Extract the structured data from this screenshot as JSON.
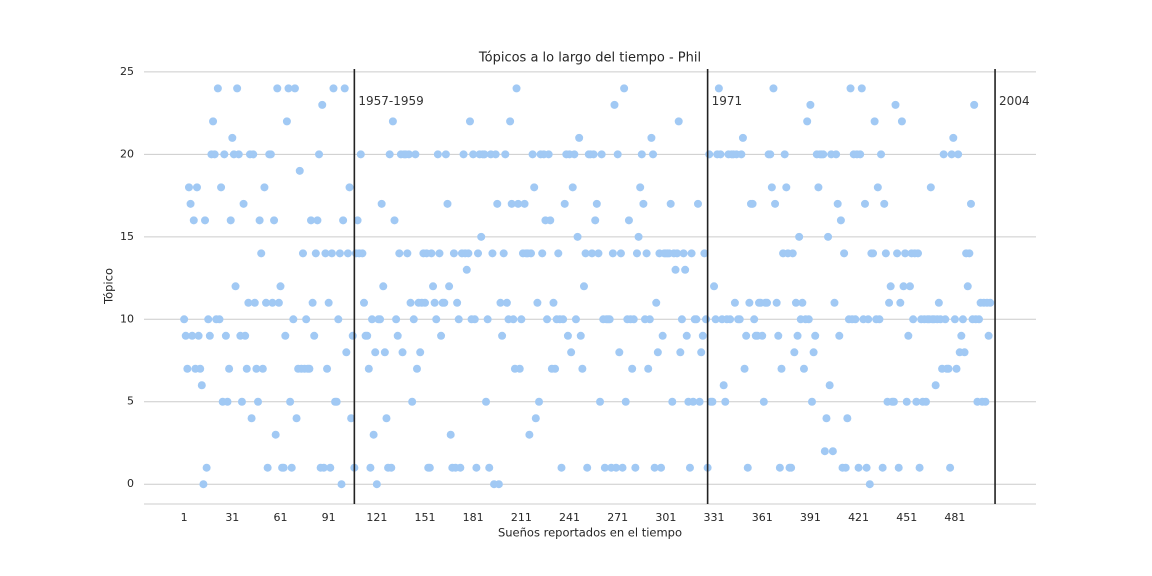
{
  "chart_data": {
    "type": "scatter",
    "title": "Tópicos a lo largo del tiempo - Phil",
    "x_label": "Sueños reportados en el tiempo",
    "y_label": "Tópico",
    "color": "#a1c9f4",
    "grid": true,
    "xlim": [
      -24,
      531.5
    ],
    "ylim": [
      -1.2,
      25.6
    ],
    "xticks": [
      1,
      31,
      61,
      91,
      121,
      151,
      181,
      211,
      241,
      271,
      301,
      331,
      361,
      391,
      421,
      451,
      481
    ],
    "yticks": [
      0,
      5,
      10,
      15,
      20,
      25
    ],
    "vlines": [
      {
        "x": 107,
        "label": "1957-1959"
      },
      {
        "x": 327,
        "label": "1971"
      },
      {
        "x": 506,
        "label": "2004"
      }
    ],
    "x": [
      1,
      2,
      3,
      4,
      5,
      6,
      7,
      8,
      9,
      10,
      11,
      12,
      13,
      14,
      15,
      16,
      17,
      18,
      19,
      20,
      21,
      22,
      23,
      24,
      25,
      26,
      27,
      28,
      29,
      30,
      31,
      32,
      33,
      34,
      35,
      36,
      37,
      38,
      39,
      40,
      41,
      42,
      43,
      44,
      45,
      46,
      47,
      48,
      49,
      50,
      51,
      52,
      53,
      54,
      55,
      56,
      57,
      58,
      59,
      60,
      61,
      62,
      63,
      64,
      65,
      66,
      67,
      68,
      69,
      70,
      71,
      72,
      73,
      74,
      75,
      76,
      77,
      78,
      79,
      80,
      81,
      82,
      83,
      84,
      85,
      86,
      87,
      88,
      89,
      90,
      91,
      92,
      93,
      94,
      95,
      96,
      97,
      98,
      99,
      100,
      101,
      102,
      103,
      104,
      105,
      106,
      107,
      108,
      109,
      110,
      111,
      112,
      113,
      114,
      115,
      116,
      117,
      118,
      119,
      120,
      121,
      122,
      123,
      124,
      125,
      126,
      127,
      128,
      129,
      130,
      131,
      132,
      133,
      134,
      135,
      136,
      137,
      138,
      139,
      140,
      141,
      142,
      143,
      144,
      145,
      146,
      147,
      148,
      149,
      150,
      151,
      152,
      153,
      154,
      155,
      156,
      157,
      158,
      159,
      160,
      161,
      162,
      163,
      164,
      165,
      166,
      167,
      168,
      169,
      170,
      171,
      172,
      173,
      174,
      175,
      176,
      177,
      178,
      179,
      180,
      181,
      182,
      183,
      184,
      185,
      186,
      187,
      188,
      189,
      190,
      191,
      192,
      193,
      194,
      195,
      196,
      197,
      198,
      199,
      200,
      201,
      202,
      203,
      204,
      205,
      206,
      207,
      208,
      209,
      210,
      211,
      212,
      213,
      214,
      215,
      216,
      217,
      218,
      219,
      220,
      221,
      222,
      223,
      224,
      225,
      226,
      227,
      228,
      229,
      230,
      231,
      232,
      233,
      234,
      235,
      236,
      237,
      238,
      239,
      240,
      241,
      242,
      243,
      244,
      245,
      246,
      247,
      248,
      249,
      250,
      251,
      252,
      253,
      254,
      255,
      256,
      257,
      258,
      259,
      260,
      261,
      262,
      263,
      264,
      265,
      266,
      267,
      268,
      269,
      270,
      271,
      272,
      273,
      274,
      275,
      276,
      277,
      278,
      279,
      280,
      281,
      282,
      283,
      284,
      285,
      286,
      287,
      288,
      289,
      290,
      291,
      292,
      293,
      294,
      295,
      296,
      297,
      298,
      299,
      300,
      301,
      302,
      303,
      304,
      305,
      306,
      307,
      308,
      309,
      310,
      311,
      312,
      313,
      314,
      315,
      316,
      317,
      318,
      319,
      320,
      321,
      322,
      323,
      324,
      325,
      326,
      327,
      328,
      329,
      330,
      331,
      332,
      333,
      334,
      335,
      336,
      337,
      338,
      339,
      340,
      341,
      342,
      343,
      344,
      345,
      346,
      347,
      348,
      349,
      350,
      351,
      352,
      353,
      354,
      355,
      356,
      357,
      358,
      359,
      360,
      361,
      362,
      363,
      364,
      365,
      366,
      367,
      368,
      369,
      370,
      371,
      372,
      373,
      374,
      375,
      376,
      377,
      378,
      379,
      380,
      381,
      382,
      383,
      384,
      385,
      386,
      387,
      388,
      389,
      390,
      391,
      392,
      393,
      394,
      395,
      396,
      397,
      398,
      399,
      400,
      401,
      402,
      403,
      404,
      405,
      406,
      407,
      408,
      409,
      410,
      411,
      412,
      413,
      414,
      415,
      416,
      417,
      418,
      419,
      420,
      421,
      422,
      423,
      424,
      425,
      426,
      427,
      428,
      429,
      430,
      431,
      432,
      433,
      434,
      435,
      436,
      437,
      438,
      439,
      440,
      441,
      442,
      443,
      444,
      445,
      446,
      447,
      448,
      449,
      450,
      451,
      452,
      453,
      454,
      455,
      456,
      457,
      458,
      459,
      460,
      461,
      462,
      463,
      464,
      465,
      466,
      467,
      468,
      469,
      470,
      471,
      472,
      473,
      474,
      475,
      476,
      477,
      478,
      479,
      480,
      481,
      482,
      483,
      484,
      485,
      486,
      487,
      488,
      489,
      490,
      491,
      492,
      493,
      494,
      495,
      496,
      497,
      498,
      499,
      500,
      501,
      502,
      503
    ],
    "values": [
      10,
      9,
      7,
      18,
      17,
      9,
      16,
      7,
      18,
      9,
      7,
      6,
      0,
      16,
      1,
      10,
      9,
      20,
      22,
      20,
      10,
      24,
      10,
      18,
      5,
      20,
      9,
      5,
      7,
      16,
      21,
      20,
      12,
      24,
      20,
      9,
      5,
      17,
      9,
      7,
      11,
      20,
      4,
      20,
      11,
      7,
      5,
      16,
      14,
      7,
      18,
      11,
      1,
      20,
      20,
      11,
      16,
      3,
      24,
      11,
      12,
      1,
      1,
      9,
      22,
      24,
      5,
      1,
      10,
      24,
      4,
      7,
      19,
      7,
      14,
      7,
      10,
      7,
      7,
      16,
      11,
      9,
      14,
      16,
      20,
      1,
      23,
      1,
      14,
      7,
      11,
      1,
      14,
      24,
      5,
      5,
      10,
      14,
      0,
      16,
      24,
      8,
      14,
      18,
      4,
      9,
      1,
      14,
      16,
      14,
      20,
      14,
      11,
      9,
      9,
      7,
      1,
      10,
      3,
      8,
      0,
      10,
      10,
      17,
      12,
      8,
      4,
      1,
      20,
      1,
      22,
      16,
      10,
      9,
      14,
      20,
      8,
      20,
      20,
      14,
      20,
      11,
      5,
      10,
      20,
      7,
      11,
      8,
      11,
      14,
      11,
      14,
      1,
      1,
      14,
      12,
      11,
      10,
      20,
      14,
      9,
      11,
      11,
      20,
      17,
      12,
      3,
      1,
      14,
      1,
      11,
      10,
      1,
      14,
      20,
      14,
      13,
      14,
      22,
      10,
      20,
      10,
      1,
      14,
      20,
      15,
      20,
      20,
      5,
      10,
      1,
      20,
      14,
      0,
      20,
      17,
      0,
      11,
      9,
      14,
      20,
      11,
      10,
      22,
      17,
      10,
      7,
      24,
      17,
      7,
      10,
      14,
      17,
      14,
      14,
      3,
      14,
      20,
      18,
      4,
      11,
      5,
      20,
      14,
      20,
      16,
      10,
      20,
      16,
      7,
      11,
      7,
      10,
      14,
      10,
      1,
      10,
      17,
      20,
      9,
      20,
      8,
      18,
      20,
      10,
      15,
      21,
      9,
      7,
      12,
      14,
      1,
      20,
      20,
      14,
      20,
      16,
      17,
      14,
      5,
      20,
      10,
      1,
      10,
      10,
      10,
      1,
      14,
      23,
      1,
      20,
      8,
      14,
      1,
      24,
      5,
      10,
      16,
      10,
      7,
      10,
      1,
      14,
      15,
      18,
      20,
      17,
      10,
      14,
      7,
      10,
      21,
      20,
      1,
      11,
      8,
      14,
      1,
      9,
      14,
      14,
      14,
      14,
      17,
      5,
      14,
      13,
      14,
      22,
      8,
      10,
      14,
      13,
      9,
      5,
      1,
      14,
      5,
      10,
      10,
      17,
      5,
      8,
      9,
      14,
      10,
      1,
      20,
      5,
      5,
      12,
      10,
      20,
      24,
      20,
      10,
      6,
      5,
      10,
      20,
      10,
      20,
      20,
      11,
      20,
      10,
      10,
      20,
      21,
      7,
      9,
      1,
      11,
      17,
      17,
      10,
      9,
      9,
      11,
      11,
      9,
      5,
      11,
      11,
      20,
      20,
      18,
      24,
      17,
      11,
      9,
      1,
      7,
      14,
      20,
      18,
      14,
      1,
      1,
      14,
      8,
      11,
      9,
      15,
      10,
      11,
      7,
      10,
      22,
      10,
      23,
      5,
      8,
      9,
      20,
      18,
      20,
      20,
      20,
      2,
      4,
      15,
      6,
      20,
      2,
      11,
      20,
      17,
      9,
      16,
      1,
      14,
      1,
      4,
      10,
      24,
      10,
      20,
      10,
      20,
      1,
      20,
      24,
      10,
      17,
      1,
      10,
      0,
      14,
      14,
      22,
      10,
      18,
      10,
      20,
      1,
      17,
      14,
      5,
      11,
      12,
      5,
      5,
      23,
      14,
      1,
      11,
      22,
      12,
      14,
      5,
      9,
      12,
      14,
      10,
      14,
      5,
      14,
      1,
      10,
      5,
      10,
      5,
      10,
      10,
      18,
      10,
      10,
      6,
      10,
      11,
      10,
      7,
      20,
      10,
      7,
      7,
      1,
      20,
      21,
      10,
      7,
      20,
      8,
      9,
      10,
      8,
      14,
      12,
      14,
      17,
      10,
      23,
      10,
      5,
      10,
      11,
      5,
      11,
      5,
      11,
      9,
      11
    ]
  }
}
